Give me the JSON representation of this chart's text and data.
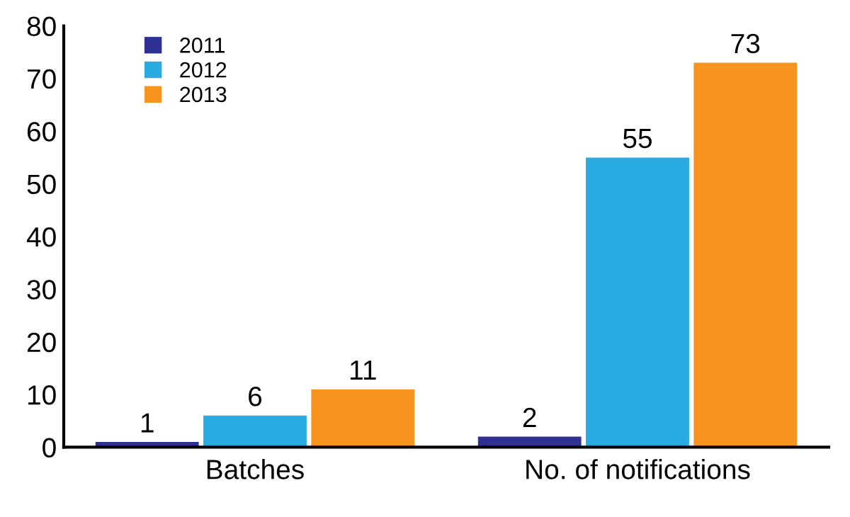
{
  "chart_data": {
    "type": "bar",
    "categories": [
      "Batches",
      "No. of notifications"
    ],
    "series": [
      {
        "name": "2011",
        "color": "#2e3192",
        "values": [
          1,
          2
        ]
      },
      {
        "name": "2012",
        "color": "#29abe2",
        "values": [
          6,
          55
        ]
      },
      {
        "name": "2013",
        "color": "#f7941d",
        "values": [
          11,
          73
        ]
      }
    ],
    "ylim": [
      0,
      80
    ],
    "yticks": [
      0,
      10,
      20,
      30,
      40,
      50,
      60,
      70,
      80
    ],
    "grid": false,
    "legend": "top left",
    "data_labels": true
  }
}
